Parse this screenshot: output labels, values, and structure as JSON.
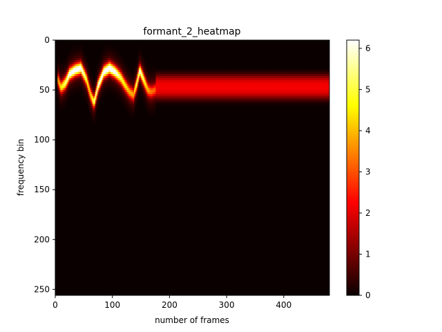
{
  "chart_data": {
    "type": "heatmap",
    "title": "formant_2_heatmap",
    "xlabel": "number of frames",
    "ylabel": "frequency bin",
    "xlim": [
      0,
      480
    ],
    "ylim": [
      256,
      0
    ],
    "y_inverted": true,
    "x_ticks": [
      0,
      100,
      200,
      300,
      400
    ],
    "y_ticks": [
      0,
      50,
      100,
      150,
      200,
      250
    ],
    "colorbar": {
      "colormap": "hot",
      "range": [
        0,
        6.2
      ],
      "ticks": [
        0,
        1,
        2,
        3,
        4,
        5,
        6
      ]
    },
    "colormap_stops": [
      "#0b0000",
      "#ff0000",
      "#ffff00",
      "#ffffff"
    ],
    "ridge_track": {
      "description": "bright formant ridge (frequency bin vs frame) in first ~175 frames",
      "x": [
        5,
        10,
        18,
        25,
        35,
        45,
        55,
        62,
        68,
        75,
        85,
        95,
        105,
        115,
        122,
        130,
        137,
        143,
        148,
        155,
        162,
        168,
        175
      ],
      "y": [
        40,
        48,
        43,
        34,
        30,
        28,
        40,
        55,
        63,
        46,
        32,
        28,
        32,
        38,
        45,
        52,
        55,
        43,
        30,
        40,
        50,
        52,
        50
      ],
      "intensity": [
        2.8,
        3.5,
        4.5,
        5.5,
        5.8,
        5.6,
        4.0,
        3.2,
        4.5,
        5.2,
        5.6,
        6.0,
        5.5,
        4.2,
        3.6,
        3.0,
        2.9,
        4.5,
        5.2,
        4.2,
        3.0,
        2.4,
        2.2
      ]
    },
    "steady_band": {
      "description": "constant red band after frame ~175",
      "x_range": [
        175,
        480
      ],
      "center_bin": 47,
      "half_width": 12,
      "peak_value": 2.1
    },
    "background_level": 0.08
  }
}
